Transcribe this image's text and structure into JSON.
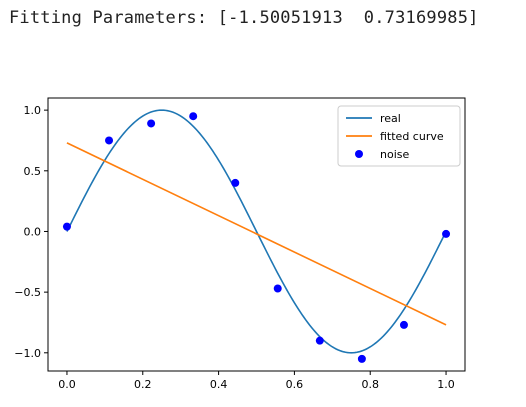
{
  "output": {
    "label": "Fitting Parameters:",
    "params_text": "[-1.50051913  0.73169985]"
  },
  "chart_data": {
    "type": "line",
    "title": "",
    "xlabel": "",
    "ylabel": "",
    "xlim": [
      -0.05,
      1.05
    ],
    "ylim": [
      -1.15,
      1.1
    ],
    "xticks": [
      0.0,
      0.2,
      0.4,
      0.6,
      0.8,
      1.0
    ],
    "xtick_labels": [
      "0.0",
      "0.2",
      "0.4",
      "0.6",
      "0.8",
      "1.0"
    ],
    "yticks": [
      -1.0,
      -0.5,
      0.0,
      0.5,
      1.0
    ],
    "ytick_labels": [
      "−1.0",
      "−0.5",
      "0.0",
      "0.5",
      "1.0"
    ],
    "grid": false,
    "legend": {
      "placement": "top-right"
    },
    "series": [
      {
        "name": "real",
        "kind": "line",
        "color": "#1f77b4",
        "function": "sin(2*pi*x)",
        "x_range": [
          0,
          1
        ]
      },
      {
        "name": "fitted curve",
        "kind": "line",
        "color": "#ff7f0e",
        "x": [
          0,
          1
        ],
        "y": [
          0.73,
          -0.77
        ]
      },
      {
        "name": "noise",
        "kind": "scatter",
        "color": "#0000ff",
        "x": [
          0.0,
          0.111,
          0.222,
          0.333,
          0.444,
          0.556,
          0.667,
          0.778,
          0.889,
          1.0
        ],
        "y": [
          0.04,
          0.75,
          0.89,
          0.95,
          0.4,
          -0.47,
          -0.9,
          -1.05,
          -0.77,
          -0.02
        ]
      }
    ]
  }
}
